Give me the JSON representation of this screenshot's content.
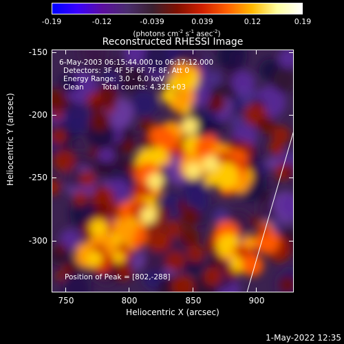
{
  "colorbar": {
    "ticks": [
      "-0.19",
      "-0.12",
      "-0.039",
      "0.039",
      "0.12",
      "0.19"
    ],
    "units_prefix": "(photons cm",
    "units_exp1": "-2",
    "units_mid": " s",
    "units_exp2": "-1",
    "units_mid2": " asec",
    "units_exp3": "-2",
    "units_suffix": ")",
    "gradient": [
      "#0000ff",
      "#3a00ff",
      "#5b0ea0",
      "#4a2d6e",
      "#3a2030",
      "#801000",
      "#d02000",
      "#ff6000",
      "#ffb800",
      "#ffffa0",
      "#ffffff"
    ]
  },
  "plot": {
    "title": "Reconstructed RHESSI Image",
    "xlabel": "Heliocentric X (arcsec)",
    "ylabel": "Heliocentric Y (arcsec)",
    "xticks": [
      "750",
      "800",
      "850",
      "900"
    ],
    "yticks": [
      "-150",
      "-200",
      "-250",
      "-300"
    ],
    "xrange": [
      735,
      928
    ],
    "yrange": [
      -343,
      -147
    ],
    "limb_line": [
      [
        890,
        -343
      ],
      [
        928,
        -210
      ]
    ]
  },
  "overlay": {
    "time_range": "6-May-2003 06:15:44.000 to 06:17:12.000",
    "detectors": "Detectors: 3F 4F 5F 6F 7F 8F, Att 0",
    "energy": "Energy Range: 3.0 - 6.0 keV",
    "clean_label": "Clean",
    "total_counts": "Total counts: 4.32E+03",
    "peak": "Position of Peak = [802,-288]"
  },
  "footer": {
    "date": "1-May-2022 12:35"
  }
}
